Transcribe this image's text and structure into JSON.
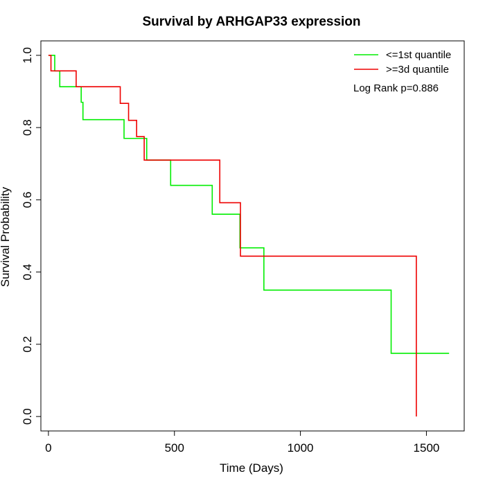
{
  "chart_data": {
    "type": "line",
    "step": true,
    "title": "Survival by ARHGAP33 expression",
    "xlabel": "Time (Days)",
    "ylabel": "Survival Probability",
    "xlim": [
      -30,
      1650
    ],
    "ylim": [
      -0.04,
      1.04
    ],
    "xticks": [
      0,
      500,
      1000,
      1500
    ],
    "yticks": [
      0.0,
      0.2,
      0.4,
      0.6,
      0.8,
      1.0
    ],
    "xtick_labels": [
      "0",
      "500",
      "1000",
      "1500"
    ],
    "ytick_labels": [
      "0.0",
      "0.2",
      "0.4",
      "0.6",
      "0.8",
      "1.0"
    ],
    "grid": false,
    "legend_position": "top-right",
    "annotation": "Log Rank p=0.886",
    "series": [
      {
        "name": "<=1st quantile",
        "color": "#00ee00",
        "x": [
          0,
          25,
          45,
          130,
          137,
          300,
          390,
          485,
          650,
          760,
          855,
          1360,
          1590
        ],
        "y": [
          1.0,
          0.957,
          0.913,
          0.87,
          0.822,
          0.77,
          0.71,
          0.64,
          0.56,
          0.467,
          0.35,
          0.175,
          0.175
        ]
      },
      {
        "name": ">=3d quantile",
        "color": "#ee0000",
        "x": [
          0,
          10,
          110,
          285,
          318,
          350,
          380,
          680,
          762,
          1460,
          1460
        ],
        "y": [
          1.0,
          0.957,
          0.913,
          0.867,
          0.82,
          0.775,
          0.71,
          0.592,
          0.444,
          0.444,
          0.0
        ]
      }
    ]
  }
}
